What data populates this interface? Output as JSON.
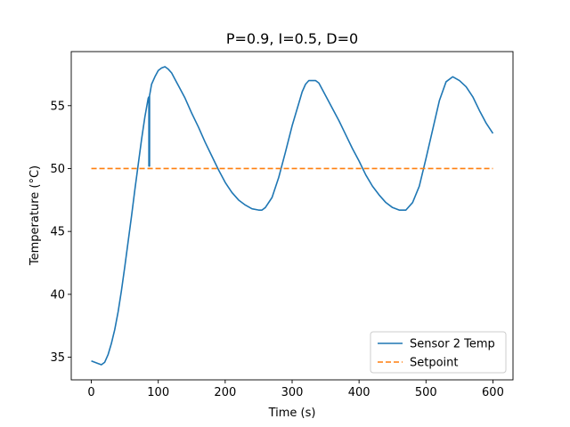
{
  "chart_data": {
    "type": "line",
    "title": "P=0.9, I=0.5, D=0",
    "xlabel": "Time (s)",
    "ylabel": "Temperature (°C)",
    "xlim": [
      -30,
      630
    ],
    "ylim": [
      33.2,
      59.3
    ],
    "xticks": [
      0,
      100,
      200,
      300,
      400,
      500,
      600
    ],
    "yticks": [
      35,
      40,
      45,
      50,
      55
    ],
    "grid": false,
    "legend_position": "lower right",
    "series": [
      {
        "name": "Sensor 2 Temp",
        "color": "#1f77b4",
        "style": "solid",
        "segments": [
          [
            [
              0,
              34.7
            ],
            [
              10,
              34.5
            ],
            [
              15,
              34.4
            ],
            [
              20,
              34.6
            ],
            [
              25,
              35.2
            ],
            [
              30,
              36.1
            ],
            [
              35,
              37.2
            ],
            [
              40,
              38.6
            ],
            [
              45,
              40.3
            ],
            [
              50,
              42.2
            ],
            [
              55,
              44.2
            ],
            [
              60,
              46.2
            ],
            [
              65,
              48.3
            ],
            [
              70,
              50.3
            ],
            [
              75,
              52.3
            ],
            [
              80,
              54.1
            ],
            [
              85,
              55.6
            ],
            [
              86,
              55.7
            ],
            [
              86,
              50.2
            ],
            [
              87,
              50.2
            ],
            [
              87,
              55.8
            ],
            [
              88,
              56.1
            ],
            [
              90,
              56.7
            ],
            [
              95,
              57.3
            ],
            [
              100,
              57.8
            ],
            [
              105,
              58.0
            ],
            [
              110,
              58.1
            ],
            [
              115,
              57.9
            ],
            [
              120,
              57.6
            ],
            [
              125,
              57.1
            ],
            [
              130,
              56.6
            ],
            [
              140,
              55.6
            ],
            [
              150,
              54.4
            ],
            [
              160,
              53.3
            ],
            [
              170,
              52.1
            ],
            [
              180,
              51.0
            ],
            [
              190,
              49.9
            ],
            [
              200,
              48.9
            ],
            [
              210,
              48.1
            ],
            [
              220,
              47.5
            ],
            [
              230,
              47.1
            ],
            [
              240,
              46.8
            ],
            [
              250,
              46.7
            ],
            [
              255,
              46.7
            ],
            [
              260,
              46.9
            ],
            [
              270,
              47.7
            ],
            [
              280,
              49.3
            ],
            [
              290,
              51.3
            ],
            [
              300,
              53.4
            ],
            [
              310,
              55.2
            ],
            [
              315,
              56.1
            ],
            [
              320,
              56.7
            ],
            [
              325,
              57.0
            ],
            [
              330,
              57.0
            ],
            [
              335,
              57.0
            ],
            [
              340,
              56.8
            ],
            [
              350,
              55.8
            ],
            [
              360,
              54.8
            ],
            [
              370,
              53.8
            ],
            [
              380,
              52.7
            ],
            [
              390,
              51.6
            ],
            [
              400,
              50.6
            ],
            [
              410,
              49.5
            ],
            [
              420,
              48.6
            ],
            [
              430,
              47.9
            ],
            [
              440,
              47.3
            ],
            [
              450,
              46.9
            ],
            [
              460,
              46.7
            ],
            [
              470,
              46.7
            ],
            [
              480,
              47.3
            ],
            [
              490,
              48.6
            ],
            [
              500,
              50.8
            ],
            [
              510,
              53.1
            ],
            [
              520,
              55.4
            ],
            [
              530,
              56.9
            ],
            [
              540,
              57.3
            ],
            [
              550,
              57.0
            ],
            [
              560,
              56.5
            ],
            [
              570,
              55.7
            ],
            [
              580,
              54.6
            ],
            [
              590,
              53.6
            ],
            [
              600,
              52.8
            ]
          ]
        ]
      },
      {
        "name": "Setpoint",
        "color": "#ff7f0e",
        "style": "dashed",
        "segments": [
          [
            [
              0,
              50
            ],
            [
              600,
              50
            ]
          ]
        ]
      }
    ]
  }
}
